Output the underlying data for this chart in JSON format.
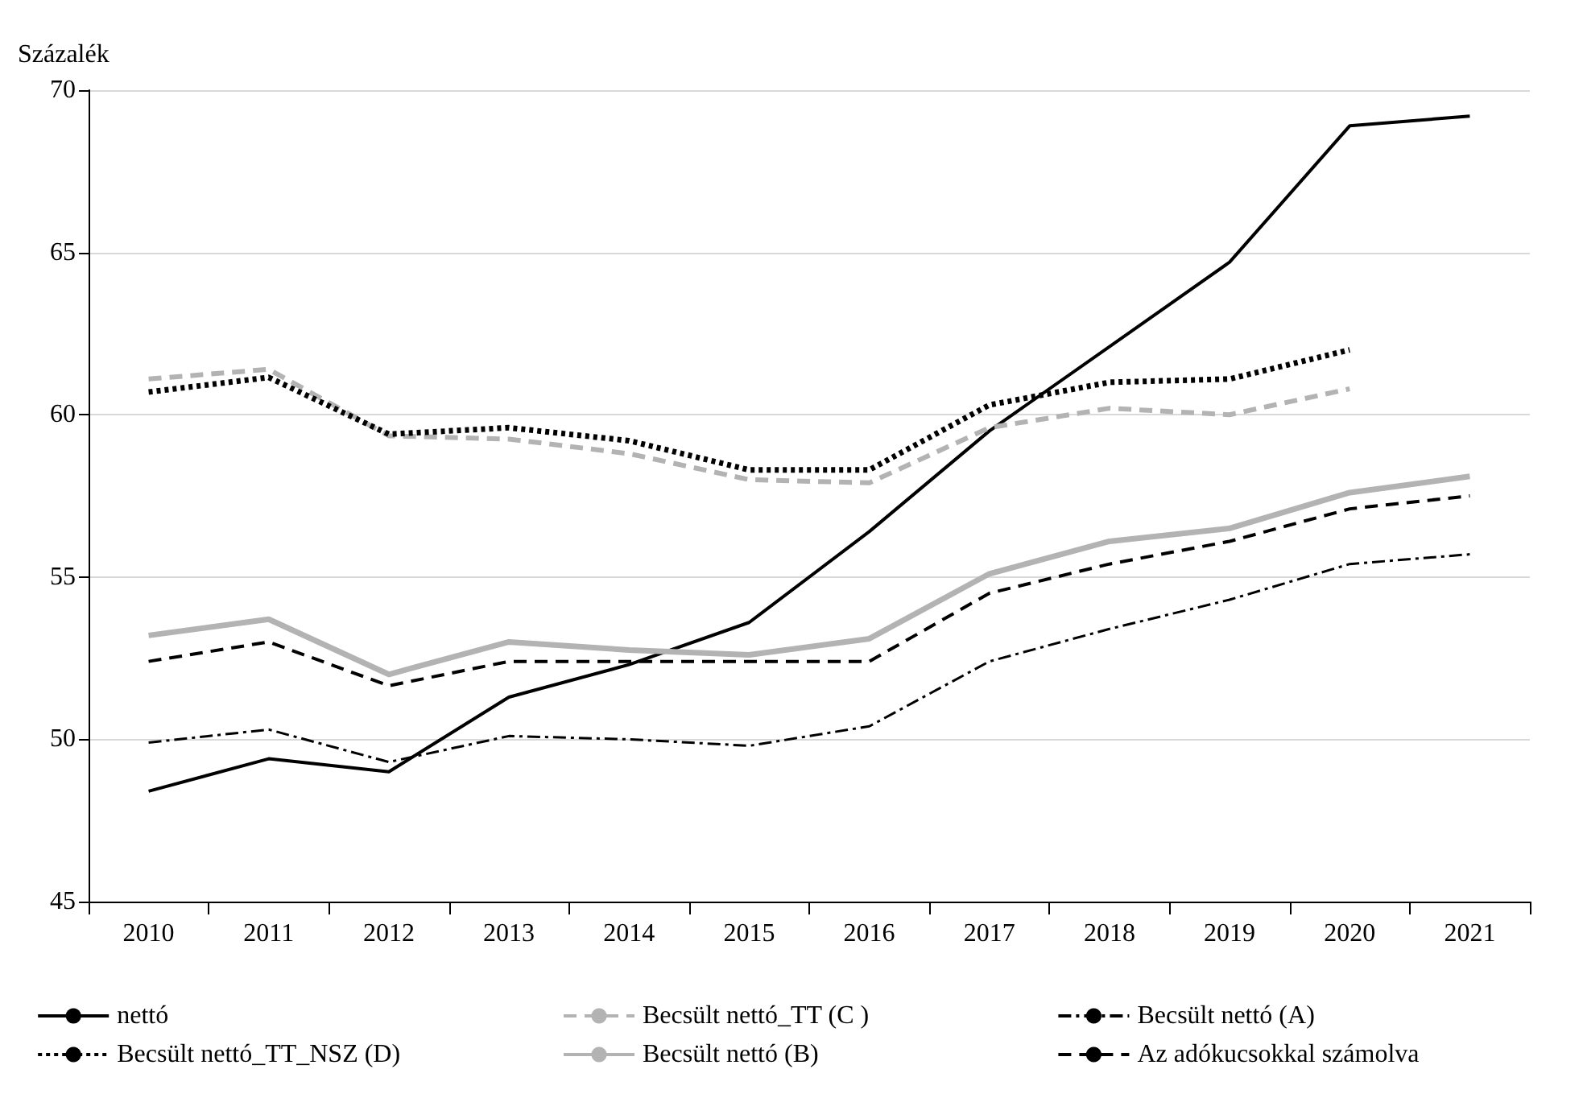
{
  "chart_data": {
    "type": "line",
    "ylabel": "Százalék",
    "categories": [
      "2010",
      "2011",
      "2012",
      "2013",
      "2014",
      "2015",
      "2016",
      "2017",
      "2018",
      "2019",
      "2020",
      "2021"
    ],
    "ylim": [
      45,
      70
    ],
    "yticks": [
      45,
      50,
      55,
      60,
      65,
      70
    ],
    "grid": "y",
    "legend": "bottom",
    "marker": "none",
    "series": [
      {
        "name": "nettó",
        "color": "#000000",
        "line_style": "solid",
        "values": [
          48.4,
          49.4,
          49.0,
          51.3,
          52.3,
          53.6,
          56.4,
          59.5,
          62.1,
          64.7,
          68.9,
          69.2
        ]
      },
      {
        "name": "Becsült nettó_TT (C )",
        "color": "#b3b3b3",
        "line_style": "dashed",
        "values": [
          61.1,
          61.4,
          59.35,
          59.25,
          58.8,
          58.0,
          57.9,
          59.6,
          60.2,
          60.0,
          60.8,
          null
        ]
      },
      {
        "name": "Becsült nettó (A)",
        "color": "#000000",
        "line_style": "dashdot",
        "values": [
          49.9,
          50.3,
          49.3,
          50.1,
          50.0,
          49.8,
          50.4,
          52.4,
          53.4,
          54.3,
          55.4,
          55.7
        ]
      },
      {
        "name": "Becsült nettó_TT_NSZ (D)",
        "color": "#000000",
        "line_style": "dotted",
        "values": [
          60.7,
          61.15,
          59.4,
          59.6,
          59.2,
          58.3,
          58.3,
          60.3,
          61.0,
          61.1,
          62.0,
          null
        ]
      },
      {
        "name": "Becsült nettó (B)",
        "color": "#b3b3b3",
        "line_style": "solid",
        "values": [
          53.2,
          53.7,
          52.0,
          53.0,
          52.75,
          52.6,
          53.1,
          55.1,
          56.1,
          56.5,
          57.6,
          58.1
        ]
      },
      {
        "name": "Az adókucsokkal számolva",
        "color": "#000000",
        "line_style": "dashed",
        "values": [
          52.4,
          53.0,
          51.65,
          52.4,
          52.4,
          52.4,
          52.4,
          54.5,
          55.4,
          56.1,
          57.1,
          57.5
        ]
      }
    ]
  }
}
